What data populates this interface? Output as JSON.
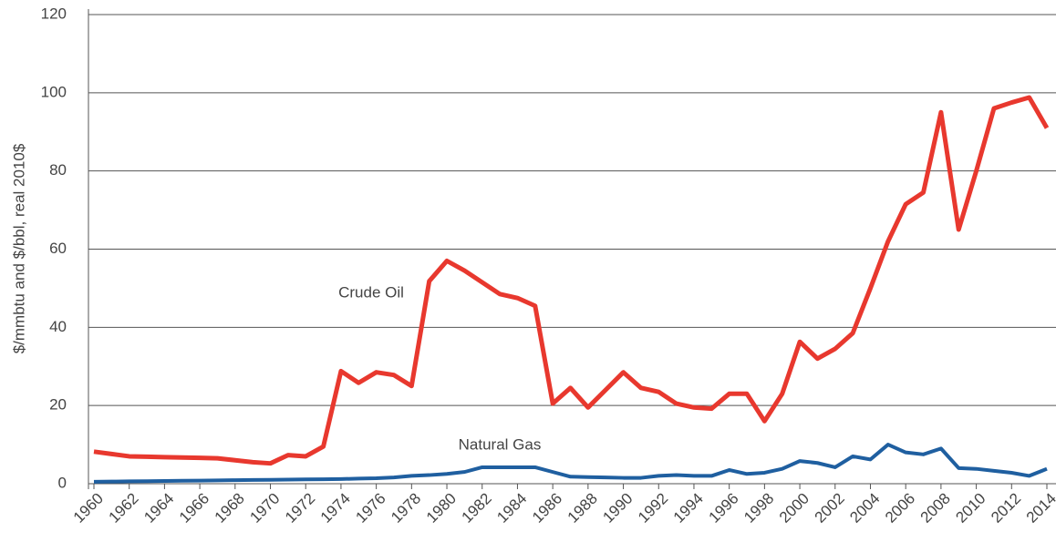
{
  "chart_data": {
    "type": "line",
    "y_label": "$/mmbtu and $/bbl, real 2010$",
    "x": [
      1960,
      1961,
      1962,
      1963,
      1964,
      1965,
      1966,
      1967,
      1968,
      1969,
      1970,
      1971,
      1972,
      1973,
      1974,
      1975,
      1976,
      1977,
      1978,
      1979,
      1980,
      1981,
      1982,
      1983,
      1984,
      1985,
      1986,
      1987,
      1988,
      1989,
      1990,
      1991,
      1992,
      1993,
      1994,
      1995,
      1996,
      1997,
      1998,
      1999,
      2000,
      2001,
      2002,
      2003,
      2004,
      2005,
      2006,
      2007,
      2008,
      2009,
      2010,
      2011,
      2012,
      2013,
      2014
    ],
    "series": [
      {
        "name": "Crude Oil",
        "color": "#e8382e",
        "values": [
          8.2,
          7.6,
          7,
          6.9,
          6.8,
          6.7,
          6.6,
          6.5,
          6,
          5.5,
          5.2,
          7.3,
          7,
          9.5,
          28.8,
          25.8,
          28.5,
          27.8,
          25,
          51.8,
          57,
          54.5,
          51.5,
          48.5,
          47.5,
          45.5,
          20.5,
          24.5,
          19.5,
          24,
          28.5,
          24.5,
          23.5,
          20.5,
          19.5,
          19.2,
          23,
          23,
          16,
          23,
          36.3,
          32,
          34.5,
          38.5,
          50,
          62,
          71.5,
          74.5,
          95,
          65,
          80,
          96,
          97.5,
          98.8,
          91
        ]
      },
      {
        "name": "Natural Gas",
        "color": "#1f5fa0",
        "values": [
          0.5,
          0.55,
          0.6,
          0.65,
          0.7,
          0.75,
          0.8,
          0.85,
          0.9,
          0.95,
          1,
          1.05,
          1.1,
          1.15,
          1.2,
          1.3,
          1.4,
          1.6,
          2,
          2.2,
          2.5,
          3,
          4.2,
          4.2,
          4.2,
          4.2,
          3,
          1.8,
          1.7,
          1.6,
          1.5,
          1.5,
          2,
          2.2,
          2,
          2,
          3.5,
          2.5,
          2.8,
          3.8,
          5.8,
          5.3,
          4.2,
          7,
          6.2,
          10,
          8,
          7.5,
          9,
          4,
          3.8,
          3.3,
          2.8,
          2,
          3.8
        ]
      }
    ],
    "xlim": [
      1960,
      2014
    ],
    "xticks": [
      1960,
      1962,
      1964,
      1966,
      1968,
      1970,
      1972,
      1974,
      1976,
      1978,
      1980,
      1982,
      1984,
      1986,
      1988,
      1990,
      1992,
      1994,
      1996,
      1998,
      2000,
      2002,
      2004,
      2006,
      2008,
      2010,
      2012,
      2014
    ],
    "ylim": [
      0,
      120
    ],
    "yticks": [
      0,
      20,
      40,
      60,
      80,
      100,
      120
    ],
    "grid": true
  }
}
